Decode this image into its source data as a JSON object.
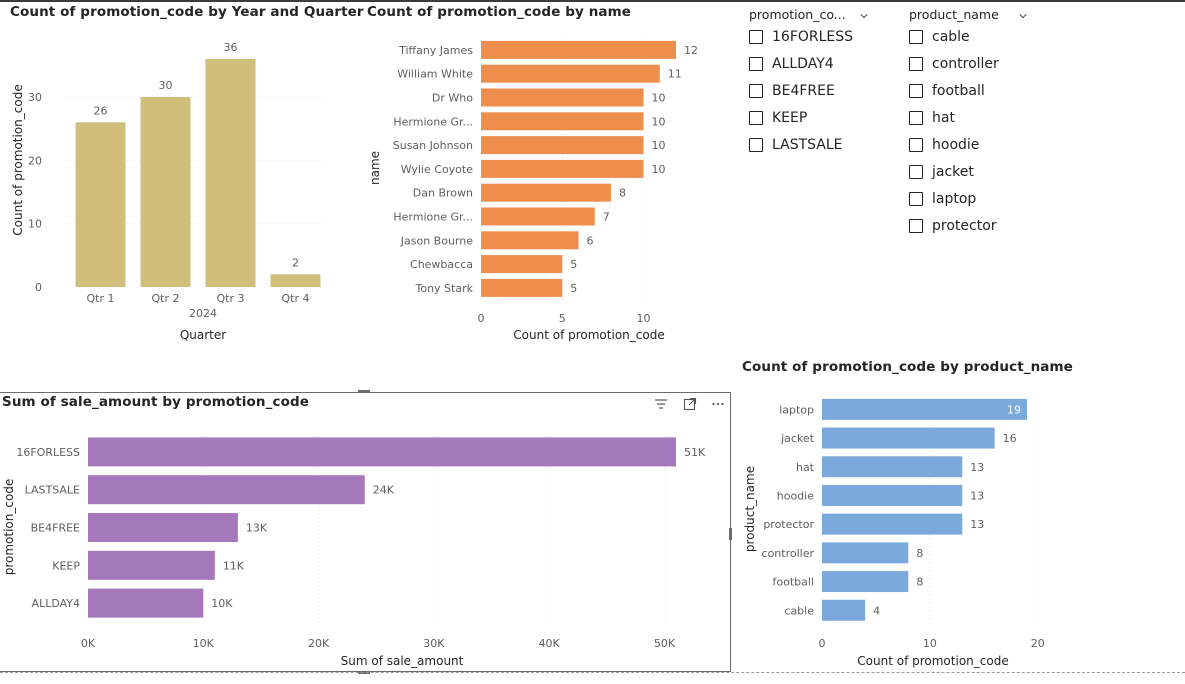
{
  "charts": {
    "quarter": {
      "title": "Count of promotion_code by Year and Quarter",
      "chart_data": {
        "type": "bar",
        "categories": [
          "Qtr 1",
          "Qtr 2",
          "Qtr 3",
          "Qtr 4"
        ],
        "values": [
          26,
          30,
          36,
          2
        ],
        "data_labels": [
          "26",
          "30",
          "36",
          "2"
        ],
        "group_label": "2024",
        "xlabel": "Quarter",
        "ylabel": "Count of promotion_code",
        "yticks": [
          0,
          10,
          20,
          30
        ],
        "ylim": [
          0,
          39
        ],
        "color": "#D0BF7A",
        "grid": true
      }
    },
    "by_name": {
      "title": "Count of promotion_code by name",
      "chart_data": {
        "type": "bar",
        "orientation": "horizontal",
        "categories": [
          "Tiffany James",
          "William White",
          "Dr Who",
          "Hermione Gr...",
          "Susan Johnson",
          "Wylie Coyote",
          "Dan Brown",
          "Hermione Gr...",
          "Jason Bourne",
          "Chewbacca",
          "Tony Stark"
        ],
        "values": [
          12,
          11,
          10,
          10,
          10,
          10,
          8,
          7,
          6,
          5,
          5
        ],
        "data_labels": [
          "12",
          "11",
          "10",
          "10",
          "10",
          "10",
          "8",
          "7",
          "6",
          "5",
          "5"
        ],
        "xlabel": "Count of promotion_code",
        "ylabel": "name",
        "xticks": [
          0,
          5,
          10
        ],
        "xlim": [
          0,
          12
        ],
        "color": "#EE8E4C",
        "grid": true
      }
    },
    "sale_amount": {
      "title": "Sum of sale_amount by promotion_code",
      "chart_data": {
        "type": "bar",
        "orientation": "horizontal",
        "categories": [
          "16FORLESS",
          "LASTSALE",
          "BE4FREE",
          "KEEP",
          "ALLDAY4"
        ],
        "values": [
          51000,
          24000,
          13000,
          11000,
          10000
        ],
        "data_labels": [
          "51K",
          "24K",
          "13K",
          "11K",
          "10K"
        ],
        "xlabel": "Sum of sale_amount",
        "ylabel": "promotion_code",
        "xticks": [
          0,
          10000,
          20000,
          30000,
          40000,
          50000
        ],
        "xtick_labels": [
          "0K",
          "10K",
          "20K",
          "30K",
          "40K",
          "50K"
        ],
        "xlim": [
          0,
          51000
        ],
        "color": "#A478BA",
        "grid": true
      }
    },
    "by_product": {
      "title": "Count of promotion_code by product_name",
      "chart_data": {
        "type": "bar",
        "orientation": "horizontal",
        "categories": [
          "laptop",
          "jacket",
          "hat",
          "hoodie",
          "protector",
          "controller",
          "football",
          "cable"
        ],
        "values": [
          19,
          16,
          13,
          13,
          13,
          8,
          8,
          4
        ],
        "data_labels": [
          "19",
          "16",
          "13",
          "13",
          "13",
          "8",
          "8",
          "4"
        ],
        "xlabel": "Count of promotion_code",
        "ylabel": "product_name",
        "xticks": [
          0,
          10,
          20
        ],
        "xlim": [
          0,
          19
        ],
        "color": "#7BA9DB",
        "grid": true
      }
    }
  },
  "slicers": {
    "promotion_code": {
      "header": "promotion_co...",
      "items": [
        "16FORLESS",
        "ALLDAY4",
        "BE4FREE",
        "KEEP",
        "LASTSALE"
      ]
    },
    "product_name": {
      "header": "product_name",
      "items": [
        "cable",
        "controller",
        "football",
        "hat",
        "hoodie",
        "jacket",
        "laptop",
        "protector"
      ]
    }
  },
  "icons": {
    "filter": "filter-icon",
    "focus": "focus-mode-icon",
    "more": "more-options-icon",
    "chevron": "chevron-down-icon"
  }
}
